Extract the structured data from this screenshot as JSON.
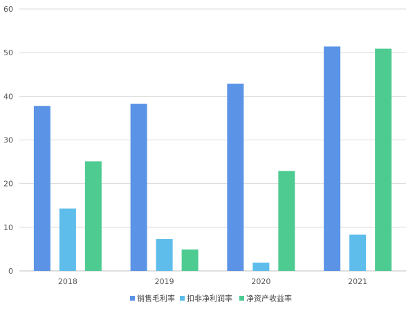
{
  "chart_data": {
    "type": "bar",
    "categories": [
      "2018",
      "2019",
      "2020",
      "2021"
    ],
    "series": [
      {
        "name": "销售毛利率",
        "color": "#5B93E6",
        "values": [
          37.8,
          38.3,
          42.9,
          51.4
        ]
      },
      {
        "name": "扣非净利润率",
        "color": "#5EBDEB",
        "values": [
          14.3,
          7.3,
          1.9,
          8.3
        ]
      },
      {
        "name": "净资产收益率",
        "color": "#4DCB91",
        "values": [
          25.1,
          4.9,
          22.9,
          50.9
        ]
      }
    ],
    "ylim": [
      0,
      60
    ],
    "yticks": [
      "0",
      "10",
      "20",
      "30",
      "40",
      "50",
      "60"
    ],
    "grid": true,
    "legend_position": "bottom-center"
  }
}
